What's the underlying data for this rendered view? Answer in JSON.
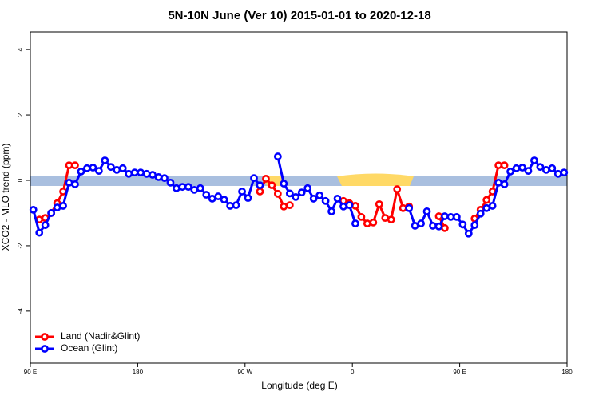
{
  "chart_data": {
    "type": "line",
    "title": "5N-10N June (Ver 10)   2015-01-01 to 2020-12-18",
    "x_label": "Longitude (deg E)",
    "y_label": "XCO2 - MLO trend (ppm)",
    "xlim": [
      90,
      540
    ],
    "ylim": [
      -5.59,
      4.54
    ],
    "xticks": [
      {
        "value": 90,
        "label": "90 E"
      },
      180,
      {
        "value": 270,
        "label": "90 W"
      },
      {
        "value": 360,
        "label": "0"
      },
      {
        "value": 450,
        "label": "90 E"
      },
      {
        "value": 540,
        "label": "180"
      }
    ],
    "yticks": [
      -4,
      -2,
      0,
      2,
      4
    ],
    "legend": "bottom-left",
    "x": [
      92.5,
      97.5,
      102.5,
      107.5,
      112.5,
      117.5,
      122.5,
      127.5,
      132.5,
      137.5,
      142.5,
      147.5,
      152.5,
      157.5,
      162.5,
      167.5,
      172.5,
      177.5,
      182.5,
      187.5,
      192.5,
      197.5,
      202.5,
      207.5,
      212.5,
      217.5,
      222.5,
      227.5,
      232.5,
      237.5,
      242.5,
      247.5,
      252.5,
      257.5,
      262.5,
      267.5,
      272.5,
      277.5,
      282.5,
      287.5,
      292.5,
      297.5,
      302.5,
      307.5,
      312.5,
      317.5,
      322.5,
      327.5,
      332.5,
      337.5,
      342.5,
      347.5,
      352.5,
      357.5,
      362.5,
      367.5,
      372.5,
      377.5,
      382.5,
      387.5,
      392.5,
      397.5,
      402.5,
      407.5,
      412.5,
      417.5,
      422.5,
      427.5,
      432.5,
      437.5,
      442.5,
      447.5,
      452.5,
      457.5,
      462.5,
      467.5,
      472.5,
      477.5,
      482.5,
      487.5,
      492.5,
      497.5,
      502.5,
      507.5,
      512.5,
      517.5,
      522.5,
      527.5,
      532.5,
      537.5
    ],
    "series": [
      {
        "name": "Land (Nadir&Glint)",
        "color": "#ff0000",
        "values": [
          null,
          -1.2,
          -1.15,
          -1.0,
          -0.7,
          -0.34,
          0.46,
          0.46,
          null,
          null,
          null,
          null,
          null,
          null,
          null,
          null,
          null,
          null,
          null,
          null,
          null,
          null,
          null,
          null,
          null,
          null,
          null,
          null,
          null,
          null,
          null,
          null,
          null,
          null,
          null,
          null,
          null,
          null,
          -0.34,
          0.05,
          -0.15,
          -0.41,
          -0.8,
          -0.76,
          null,
          null,
          null,
          null,
          null,
          null,
          null,
          null,
          -0.63,
          -0.7,
          -0.78,
          -1.12,
          -1.32,
          -1.29,
          -0.73,
          -1.15,
          -1.2,
          -0.27,
          -0.85,
          -0.8,
          null,
          null,
          null,
          null,
          -1.1,
          -1.46,
          null,
          null,
          null,
          null,
          -1.17,
          -0.9,
          -0.6,
          -0.34,
          0.46,
          0.46,
          null,
          null,
          null,
          null,
          null,
          null,
          null,
          null,
          null,
          null
        ]
      },
      {
        "name": "Ocean (Glint)",
        "color": "#0000ff",
        "values": [
          -0.9,
          -1.6,
          -1.37,
          -1.0,
          -0.83,
          -0.78,
          -0.07,
          -0.12,
          0.27,
          0.37,
          0.39,
          0.29,
          0.61,
          0.41,
          0.32,
          0.37,
          0.2,
          0.24,
          0.24,
          0.2,
          0.17,
          0.1,
          0.07,
          -0.07,
          -0.24,
          -0.2,
          -0.2,
          -0.29,
          -0.24,
          -0.44,
          -0.56,
          -0.49,
          -0.59,
          -0.78,
          -0.76,
          -0.34,
          -0.54,
          0.07,
          -0.15,
          null,
          null,
          0.73,
          -0.1,
          -0.4,
          -0.51,
          -0.37,
          -0.24,
          -0.56,
          -0.46,
          -0.63,
          -0.95,
          -0.56,
          -0.8,
          -0.76,
          -1.32,
          null,
          null,
          null,
          null,
          null,
          null,
          null,
          null,
          -0.85,
          -1.39,
          -1.32,
          -0.95,
          -1.39,
          -1.41,
          -1.1,
          -1.12,
          -1.12,
          -1.35,
          -1.63,
          -1.37,
          -1.02,
          -0.85,
          -0.78,
          -0.07,
          -0.12,
          0.27,
          0.37,
          0.39,
          0.29,
          0.61,
          0.41,
          0.32,
          0.37,
          0.2,
          0.24
        ]
      }
    ]
  }
}
